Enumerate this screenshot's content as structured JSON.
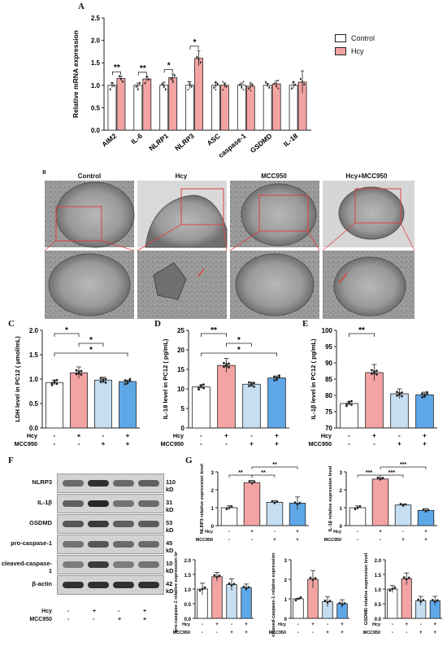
{
  "panelA": {
    "label": "A",
    "legend": [
      "Control",
      "Hcy"
    ],
    "colors": {
      "control": "#ffffff",
      "hcy": "#f4a3a3",
      "stroke": "#222222"
    },
    "chart_data": {
      "type": "bar",
      "ylabel": "Relative mRNA expression",
      "ylim": [
        0,
        2.5
      ],
      "yticks": [
        0.0,
        0.5,
        1.0,
        1.5,
        2.0,
        2.5
      ],
      "categories": [
        "AIM2",
        "IL-6",
        "NLRP1",
        "NLRP3",
        "ASC",
        "caspase-1",
        "GSDMD",
        "IL-18"
      ],
      "series": [
        {
          "name": "Control",
          "values": [
            1.0,
            1.0,
            1.0,
            1.0,
            1.0,
            1.0,
            1.0,
            1.0
          ],
          "errors": [
            0.05,
            0.05,
            0.07,
            0.08,
            0.06,
            0.05,
            0.04,
            0.07
          ]
        },
        {
          "name": "Hcy",
          "values": [
            1.15,
            1.14,
            1.17,
            1.6,
            1.0,
            0.98,
            1.03,
            1.07
          ],
          "errors": [
            0.05,
            0.05,
            0.08,
            0.17,
            0.05,
            0.05,
            0.07,
            0.25
          ]
        }
      ],
      "significance": [
        "**",
        "**",
        "*",
        "*",
        "",
        "",
        "",
        ""
      ]
    }
  },
  "panelB": {
    "label": "B",
    "titles": [
      "Control",
      "Hcy",
      "MCC950",
      "Hcy+MCC950"
    ]
  },
  "panelC": {
    "label": "C",
    "chart_data": {
      "type": "bar",
      "ylabel": "LDH level in PC12 ( μmol/mL)",
      "ylim": [
        0,
        2.0
      ],
      "yticks": [
        0.0,
        0.5,
        1.0,
        1.5,
        2.0
      ],
      "values": [
        0.93,
        1.13,
        0.98,
        0.95
      ],
      "errors": [
        0.05,
        0.12,
        0.06,
        0.03
      ],
      "significance": [
        {
          "from": 0,
          "to": 1,
          "mark": "*"
        },
        {
          "from": 1,
          "to": 2,
          "mark": "*"
        },
        {
          "from": 0,
          "to": 3,
          "mark": "*"
        }
      ]
    }
  },
  "panelD": {
    "label": "D",
    "chart_data": {
      "type": "bar",
      "ylabel": "IL-18 level in PC12 ( pg/mL)",
      "ylim": [
        0,
        25
      ],
      "yticks": [
        0,
        5,
        10,
        15,
        20,
        25
      ],
      "values": [
        10.5,
        16.0,
        11.2,
        12.8
      ],
      "errors": [
        0.4,
        1.8,
        0.5,
        0.5
      ],
      "significance": [
        {
          "from": 0,
          "to": 1,
          "mark": "**"
        },
        {
          "from": 1,
          "to": 2,
          "mark": "*"
        },
        {
          "from": 0,
          "to": 3,
          "mark": "*"
        }
      ]
    }
  },
  "panelE": {
    "label": "E",
    "chart_data": {
      "type": "bar",
      "ylabel": "IL-1β level in PC12 ( pg/mL)",
      "ylim": [
        70,
        100
      ],
      "yticks": [
        70,
        75,
        80,
        85,
        90,
        95,
        100
      ],
      "values": [
        77.5,
        87.0,
        80.5,
        80.2
      ],
      "errors": [
        0.5,
        2.5,
        1.5,
        0.8
      ],
      "significance": [
        {
          "from": 0,
          "to": 1,
          "mark": "**"
        }
      ]
    }
  },
  "treatments": {
    "hcy_label": "Hcy",
    "mcc_label": "MCC950",
    "hcy": [
      "-",
      "+",
      "-",
      "+"
    ],
    "mcc": [
      "-",
      "-",
      "+",
      "+"
    ]
  },
  "barColors": [
    "#ffffff",
    "#f4a3a3",
    "#c5def2",
    "#5ea8e8"
  ],
  "panelF": {
    "label": "F",
    "rows": [
      {
        "name": "NLRP3",
        "kd": "110 kD"
      },
      {
        "name": "IL-1β",
        "kd": "31 kD"
      },
      {
        "name": "GSDMD",
        "kd": "53 kD"
      },
      {
        "name": "pro-caspase-1",
        "kd": "45 kD"
      },
      {
        "name": "cleaved-caspase-1",
        "kd": "10 kD"
      },
      {
        "name": "β-actin",
        "kd": "42 kD"
      }
    ]
  },
  "panelG": {
    "label": "G",
    "charts": [
      {
        "ylabel": "NLRP3 relative expression level",
        "ylim": [
          0,
          3
        ],
        "yticks": [
          0,
          1,
          2,
          3
        ],
        "values": [
          1.0,
          2.4,
          1.3,
          1.25
        ],
        "errors": [
          0.12,
          0.12,
          0.1,
          0.35
        ]
      },
      {
        "ylabel": "IL-1β relative expression level",
        "ylim": [
          0,
          3
        ],
        "yticks": [
          0,
          1,
          2,
          3
        ],
        "values": [
          1.0,
          2.6,
          1.15,
          0.85
        ],
        "errors": [
          0.1,
          0.05,
          0.05,
          0.1
        ]
      },
      {
        "ylabel": "pro-caspase-1 relative expression level",
        "ylim": [
          0,
          2.0
        ],
        "yticks": [
          0.0,
          0.5,
          1.0,
          1.5,
          2.0
        ],
        "values": [
          1.0,
          1.42,
          1.15,
          1.05
        ],
        "errors": [
          0.2,
          0.15,
          0.2,
          0.12
        ]
      },
      {
        "ylabel": "cleaved-caspase-1 relative expression level",
        "ylim": [
          0,
          3
        ],
        "yticks": [
          0,
          1,
          2,
          3
        ],
        "values": [
          1.0,
          2.0,
          0.85,
          0.75
        ],
        "errors": [
          0.03,
          0.45,
          0.25,
          0.2
        ]
      },
      {
        "ylabel": "GSDMD relative expression level",
        "ylim": [
          0,
          2.0
        ],
        "yticks": [
          0.0,
          0.5,
          1.0,
          1.5,
          2.0
        ],
        "values": [
          1.0,
          1.35,
          0.6,
          0.6
        ],
        "errors": [
          0.12,
          0.2,
          0.15,
          0.15
        ]
      }
    ]
  }
}
